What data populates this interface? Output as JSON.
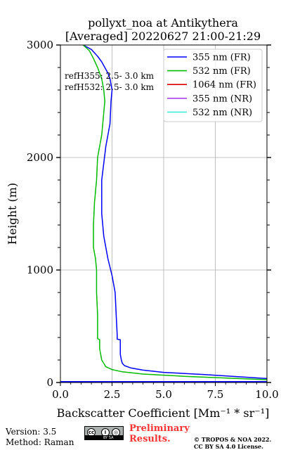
{
  "chart_data": {
    "type": "line",
    "title": "pollyxt_noa at Antikythera",
    "subtitle": "[Averaged] 20220627 21:00-21:29",
    "xlabel": "Backscatter Coefficient [Mm⁻¹ * sr⁻¹]",
    "ylabel": "Height (m)",
    "xlim": [
      0,
      10
    ],
    "ylim": [
      0,
      3000
    ],
    "x_ticks": [
      0,
      2.5,
      5,
      7.5,
      10
    ],
    "x_tick_labels": [
      "0.0",
      "2.5",
      "5.0",
      "7.5",
      "10.0"
    ],
    "y_ticks": [
      0,
      1000,
      2000,
      3000
    ],
    "y_tick_labels": [
      "0",
      "1000",
      "2000",
      "3000"
    ],
    "grid": true,
    "legend_position": "top-right",
    "annotations": [
      "refH355:  2.5- 3.0 km",
      "refH532:  2.5- 3.0 km"
    ],
    "series": [
      {
        "name": "355 nm (FR)",
        "color": "#0000ff",
        "x": [
          10.0,
          7.0,
          5.0,
          4.0,
          3.4,
          3.1,
          3.0,
          2.95,
          2.9,
          2.9,
          2.75,
          2.75,
          2.7,
          2.65,
          2.5,
          2.3,
          2.2,
          2.1,
          2.05,
          2.0,
          2.0,
          2.0,
          2.1,
          2.2,
          2.4,
          2.45,
          2.5,
          2.4,
          2.3,
          2.0,
          1.8,
          1.5,
          1.1
        ],
        "y": [
          35,
          70,
          90,
          110,
          130,
          150,
          170,
          200,
          250,
          380,
          385,
          420,
          600,
          800,
          950,
          1100,
          1200,
          1300,
          1400,
          1500,
          1600,
          1800,
          1950,
          2100,
          2300,
          2500,
          2600,
          2700,
          2750,
          2850,
          2900,
          2960,
          3000
        ]
      },
      {
        "name": "532 nm (FR)",
        "color": "#00bb00",
        "x": [
          10.0,
          6.0,
          4.0,
          3.0,
          2.5,
          2.2,
          2.0,
          1.9,
          1.9,
          1.8,
          1.8,
          1.75,
          1.75,
          1.7,
          1.6,
          1.6,
          1.65,
          1.75,
          1.8,
          2.0,
          2.1,
          2.15,
          2.1,
          2.0,
          1.8,
          1.6,
          1.4,
          1.1
        ],
        "y": [
          25,
          55,
          75,
          95,
          115,
          140,
          200,
          300,
          380,
          390,
          600,
          800,
          1000,
          1100,
          1200,
          1400,
          1600,
          1800,
          2000,
          2200,
          2400,
          2500,
          2600,
          2700,
          2800,
          2880,
          2950,
          3000
        ]
      },
      {
        "name": "1064 nm (FR)",
        "color": "#dd0000",
        "x": [],
        "y": []
      },
      {
        "name": "355 nm (NR)",
        "color": "#aa44ee",
        "x": [],
        "y": []
      },
      {
        "name": "532 nm (NR)",
        "color": "#44eedd",
        "x": [],
        "y": []
      }
    ],
    "baseline": {
      "color": "#0000ff",
      "x": [
        0,
        10
      ],
      "y": [
        8,
        8
      ]
    }
  },
  "footer": {
    "version": "Version: 3.5",
    "method": "Method: Raman",
    "preliminary_line1": "Preliminary",
    "preliminary_line2": "Results.",
    "copyright_line1": "© TROPOS & NOA 2022.",
    "copyright_line2": "CC BY SA 4.0 License.",
    "cc_logo_text": "BY SA"
  },
  "colors": {
    "grid": "#b0b0b0",
    "prelim": "#ff3333"
  }
}
